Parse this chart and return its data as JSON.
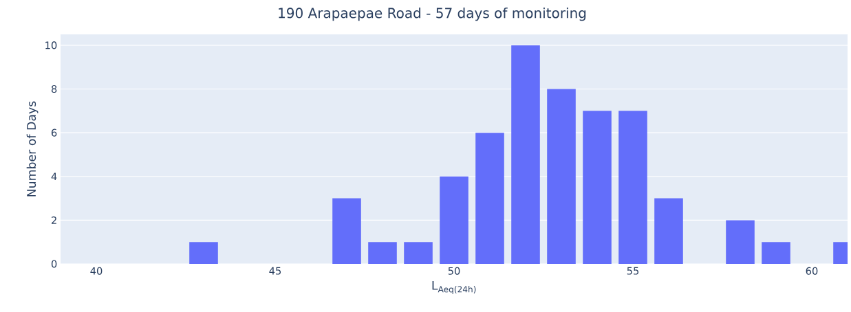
{
  "chart_data": {
    "type": "bar",
    "title": "190 Arapaepae Road - 57 days of monitoring",
    "xlabel": "L$_{Aeq(24h)}$",
    "ylabel": "Number of Days",
    "x": [
      40,
      41,
      42,
      43,
      44,
      45,
      46,
      47,
      48,
      49,
      50,
      51,
      52,
      53,
      54,
      55,
      56,
      57,
      58,
      59,
      60,
      61
    ],
    "values": [
      0,
      0,
      0,
      1,
      0,
      0,
      0,
      3,
      1,
      1,
      4,
      6,
      10,
      8,
      7,
      7,
      3,
      0,
      2,
      1,
      0,
      1
    ],
    "color": "#636efa",
    "xlim": [
      39,
      61
    ],
    "xticks": [
      40,
      45,
      50,
      55,
      60
    ],
    "ylim": [
      0,
      10.5
    ],
    "yticks": [
      0,
      2,
      4,
      6,
      8,
      10
    ],
    "grid": "y"
  }
}
